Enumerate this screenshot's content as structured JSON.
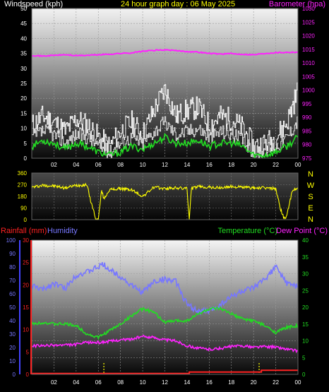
{
  "colors": {
    "wind": "#ffffff",
    "gust": "#ffffff",
    "wind_avg": "#22dd22",
    "barometer": "#ff22ff",
    "direction": "#ffff00",
    "rainfall": "#ff2222",
    "humidity": "#7777ff",
    "temperature": "#22dd22",
    "dew_point": "#ff22ff",
    "rain_marker": "#ffff00"
  },
  "chart_data": [
    {
      "type": "line",
      "title": "24 hour graph day : 06 May 2025",
      "ylabel": "Windspeed (kph)",
      "y2label": "Barometer (hpa)",
      "ylim": [
        0,
        50
      ],
      "yticks": [
        0,
        5,
        10,
        15,
        20,
        25,
        30,
        35,
        40,
        45,
        50
      ],
      "y2lim": [
        975,
        1030
      ],
      "y2ticks": [
        975,
        980,
        985,
        990,
        995,
        1000,
        1005,
        1010,
        1015,
        1020,
        1025,
        1030
      ],
      "xrange_hours": [
        0,
        24
      ],
      "xticks": [
        "02",
        "04",
        "06",
        "08",
        "10",
        "12",
        "14",
        "16",
        "18",
        "20",
        "22",
        "00"
      ],
      "grid": true,
      "series": [
        {
          "key": "gust",
          "x": [
            0,
            1,
            2,
            3,
            4,
            5,
            6,
            7,
            8,
            9,
            10,
            11,
            12,
            13,
            14,
            15,
            16,
            17,
            18,
            19,
            20,
            21,
            22,
            23,
            24
          ],
          "values": [
            11,
            14,
            12,
            9,
            13,
            11,
            7,
            4,
            9,
            12,
            8,
            16,
            23,
            14,
            16,
            17,
            11,
            14,
            13,
            10,
            4,
            5,
            7,
            12,
            23
          ]
        },
        {
          "key": "wind",
          "x": [
            0,
            1,
            2,
            3,
            4,
            5,
            6,
            7,
            8,
            9,
            10,
            11,
            12,
            13,
            14,
            15,
            16,
            17,
            18,
            19,
            20,
            21,
            22,
            23,
            24
          ],
          "values": [
            7,
            9,
            8,
            5,
            8,
            7,
            4,
            2,
            5,
            7,
            5,
            9,
            12,
            8,
            9,
            10,
            7,
            9,
            8,
            6,
            2,
            3,
            4,
            7,
            13
          ]
        },
        {
          "key": "wind_avg",
          "x": [
            0,
            1,
            2,
            3,
            4,
            5,
            6,
            7,
            8,
            9,
            10,
            11,
            12,
            13,
            14,
            15,
            16,
            17,
            18,
            19,
            20,
            21,
            22,
            23,
            24
          ],
          "values": [
            4,
            6,
            5,
            3,
            5,
            4,
            2,
            1,
            2,
            4,
            3,
            5,
            7,
            5,
            5,
            6,
            4,
            5,
            5,
            4,
            1,
            1,
            2,
            4,
            7
          ]
        },
        {
          "key": "barometer",
          "axis": "right",
          "x": [
            0,
            1,
            2,
            3,
            4,
            5,
            6,
            7,
            8,
            9,
            10,
            11,
            12,
            13,
            14,
            15,
            16,
            17,
            18,
            19,
            20,
            21,
            22,
            23,
            24
          ],
          "values": [
            1012.8,
            1012.5,
            1012.8,
            1013.0,
            1012.7,
            1012.8,
            1013.0,
            1013.2,
            1013.5,
            1013.7,
            1014.3,
            1014.6,
            1014.8,
            1014.5,
            1014.2,
            1014.0,
            1013.5,
            1013.3,
            1013.4,
            1013.2,
            1013.0,
            1013.5,
            1013.8,
            1013.9,
            1014.0
          ]
        }
      ]
    },
    {
      "type": "line",
      "ylabel": "Wind direction",
      "ylim": [
        0,
        360
      ],
      "yticks": [
        0,
        90,
        180,
        270,
        360
      ],
      "compass_labels": [
        "N",
        "W",
        "S",
        "E",
        "N"
      ],
      "xrange_hours": [
        0,
        24
      ],
      "grid": true,
      "series": [
        {
          "key": "direction",
          "x": [
            0,
            1,
            2,
            3,
            4,
            5,
            5.2,
            5.8,
            6,
            6.3,
            6.5,
            7,
            8,
            9,
            10,
            11,
            12,
            13,
            14,
            14.2,
            14.4,
            15,
            16,
            17,
            18,
            19,
            20,
            21,
            22,
            22.4,
            22.8,
            23,
            23.5,
            24
          ],
          "values": [
            250,
            265,
            260,
            245,
            265,
            270,
            180,
            0,
            0,
            230,
            160,
            230,
            240,
            230,
            180,
            250,
            240,
            245,
            240,
            0,
            240,
            255,
            250,
            245,
            255,
            250,
            245,
            245,
            240,
            90,
            0,
            40,
            220,
            250
          ]
        }
      ]
    },
    {
      "type": "line",
      "ylabel": "Rainfall (mm)",
      "y2label": "Humidity",
      "y3label": "Temperature (°C)",
      "y4label": "Dew Point (°C)",
      "rain_ticks": [
        0,
        5,
        10,
        15,
        20,
        25,
        30
      ],
      "humidity_ticks": [
        0,
        10,
        20,
        30,
        40,
        50,
        60,
        70,
        80,
        90,
        100
      ],
      "temp_ticks": [
        0,
        5,
        10,
        15,
        20,
        25,
        30,
        35,
        40
      ],
      "ylim_rain": [
        0,
        30
      ],
      "ylim_humidity": [
        0,
        100
      ],
      "ylim_temp": [
        0,
        40
      ],
      "xrange_hours": [
        0,
        24
      ],
      "xticks": [
        "02",
        "04",
        "06",
        "08",
        "10",
        "12",
        "14",
        "16",
        "18",
        "20",
        "22",
        "00"
      ],
      "grid": true,
      "series": [
        {
          "key": "humidity",
          "x": [
            0,
            1,
            2,
            3,
            4,
            5,
            6,
            6.5,
            7,
            8,
            9,
            10,
            11,
            12,
            13,
            14,
            15,
            16,
            17,
            18,
            19,
            20,
            21,
            22,
            23,
            24
          ],
          "values": [
            66,
            63,
            68,
            64,
            74,
            76,
            80,
            82,
            78,
            73,
            66,
            61,
            69,
            71,
            69,
            52,
            47,
            47,
            52,
            58,
            62,
            64,
            71,
            80,
            68,
            65
          ]
        },
        {
          "key": "temperature",
          "x": [
            0,
            1,
            2,
            3,
            4,
            5,
            6,
            7,
            8,
            9,
            10,
            11,
            12,
            13,
            14,
            15,
            16,
            17,
            18,
            19,
            20,
            21,
            22,
            23,
            24
          ],
          "values": [
            15,
            15.5,
            15,
            15,
            14.5,
            12,
            11,
            13,
            15,
            17.5,
            19.5,
            18.5,
            15.5,
            16,
            16,
            18,
            19.5,
            19.5,
            18,
            16.5,
            16,
            14.5,
            12.5,
            14,
            14.5
          ]
        },
        {
          "key": "dew_point",
          "x": [
            0,
            1,
            2,
            3,
            4,
            5,
            6,
            7,
            8,
            9,
            10,
            11,
            12,
            13,
            14,
            15,
            16,
            17,
            18,
            19,
            20,
            21,
            22,
            23,
            24
          ],
          "values": [
            8.5,
            8.5,
            8.7,
            8.7,
            8.9,
            9.5,
            9.5,
            9.8,
            10.3,
            10.5,
            11.3,
            11,
            10.3,
            10,
            8.5,
            7.8,
            7.5,
            7.7,
            8.3,
            8.5,
            8.1,
            8.3,
            8.1,
            7.5,
            7
          ]
        },
        {
          "key": "rainfall",
          "axis": "rain",
          "x": [
            0,
            14,
            14.2,
            20.5,
            20.7,
            24
          ],
          "values": [
            0.2,
            0.2,
            0.5,
            0.5,
            0.9,
            0.9
          ]
        }
      ],
      "rain_markers": [
        6.5,
        20.5
      ]
    }
  ]
}
